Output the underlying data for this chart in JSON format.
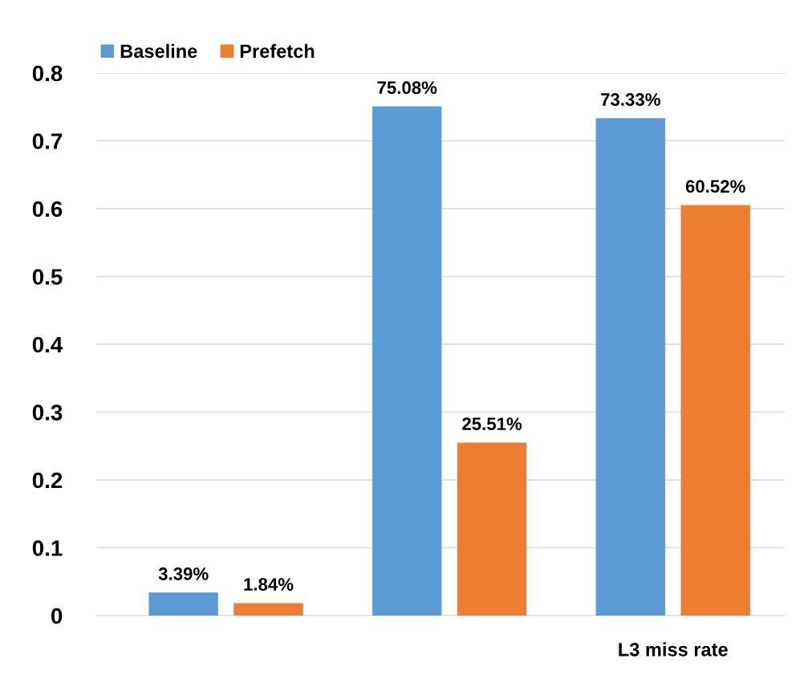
{
  "chart_data": {
    "type": "bar",
    "categories": [
      null,
      null,
      "L3 miss rate"
    ],
    "series": [
      {
        "name": "Baseline",
        "color": "#5b9bd5",
        "values": [
          0.0339,
          0.7508,
          0.7333
        ],
        "value_labels": [
          "3.39%",
          "75.08%",
          "73.33%"
        ]
      },
      {
        "name": "Prefetch",
        "color": "#ed7d31",
        "values": [
          0.0184,
          0.2551,
          0.6052
        ],
        "value_labels": [
          "1.84%",
          "25.51%",
          "60.52%"
        ]
      }
    ],
    "ylim": [
      0,
      0.8
    ],
    "yticks": [
      0,
      0.1,
      0.2,
      0.3,
      0.4,
      0.5,
      0.6,
      0.7,
      0.8
    ],
    "grid": "y",
    "legend": "top left"
  }
}
